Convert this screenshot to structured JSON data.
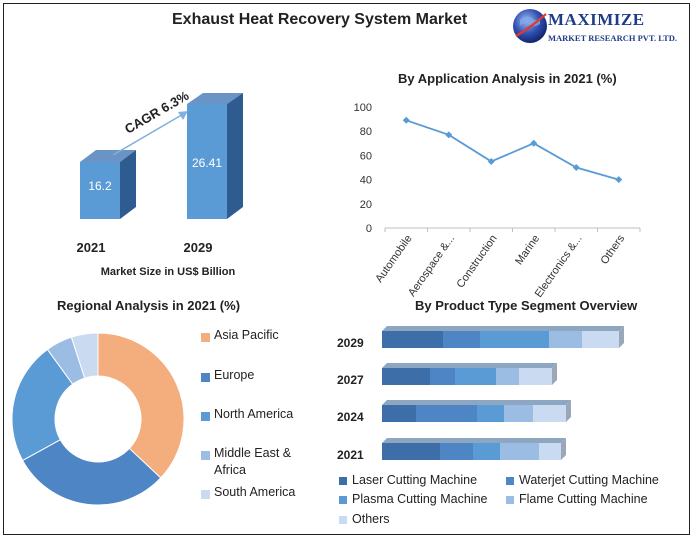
{
  "title": "Exhaust Heat Recovery System Market",
  "logo": {
    "name": "MAXIMIZE",
    "subtitle": "MARKET RESEARCH PVT. LTD."
  },
  "colors": {
    "dark": "#3d6ea8",
    "mid": "#4d85c5",
    "bright": "#5b9bd5",
    "light": "#9bbde3",
    "pale": "#c9daf1",
    "orange": "#f4ad7c"
  },
  "market_size": {
    "years": [
      "2021",
      "2029"
    ],
    "values": [
      "16.2",
      "26.41"
    ],
    "cagr": "CAGR 6.3%",
    "caption": "Market Size in US$ Billion"
  },
  "chart_data": [
    {
      "type": "line",
      "title": "By Application Analysis in 2021 (%)",
      "categories": [
        "Automobile",
        "Aerospace &...",
        "Construction",
        "Marine",
        "Electronics &...",
        "Others"
      ],
      "values": [
        89,
        77,
        55,
        70,
        50,
        40
      ],
      "ylim": [
        0,
        100
      ],
      "yticks": [
        0,
        20,
        40,
        60,
        80,
        100
      ]
    },
    {
      "type": "pie",
      "title": "Regional Analysis in 2021 (%)",
      "labels": [
        "Asia Pacific",
        "Europe",
        "North America",
        "Middle East & Africa",
        "South America"
      ],
      "legend_lines": [
        [
          "Asia Pacific"
        ],
        [
          "Europe"
        ],
        [
          "North America"
        ],
        [
          "Middle East &",
          "Africa"
        ],
        [
          "South America"
        ]
      ],
      "values": [
        37,
        30,
        23,
        5,
        5
      ],
      "colors": [
        "#f4ad7c",
        "#4d85c5",
        "#5b9bd5",
        "#9bbde3",
        "#c9daf1"
      ]
    },
    {
      "type": "bar",
      "stacked": true,
      "orientation": "horizontal",
      "title": "By Product Type Segment Overview",
      "categories": [
        "2029",
        "2027",
        "2024",
        "2021"
      ],
      "series": [
        {
          "name": "Laser Cutting Machine",
          "values": [
            61,
            48,
            34,
            58
          ],
          "color": "#3d6ea8"
        },
        {
          "name": "Waterjet Cutting Machine",
          "values": [
            37,
            25,
            61,
            33
          ],
          "color": "#4d85c5"
        },
        {
          "name": "Plasma Cutting Machine",
          "values": [
            69,
            41,
            27,
            27
          ],
          "color": "#5b9bd5"
        },
        {
          "name": "Flame Cutting Machine",
          "values": [
            33,
            23,
            29,
            39
          ],
          "color": "#9bbde3"
        },
        {
          "name": "Others",
          "values": [
            37,
            33,
            33,
            22
          ],
          "color": "#c9daf1"
        }
      ]
    }
  ]
}
